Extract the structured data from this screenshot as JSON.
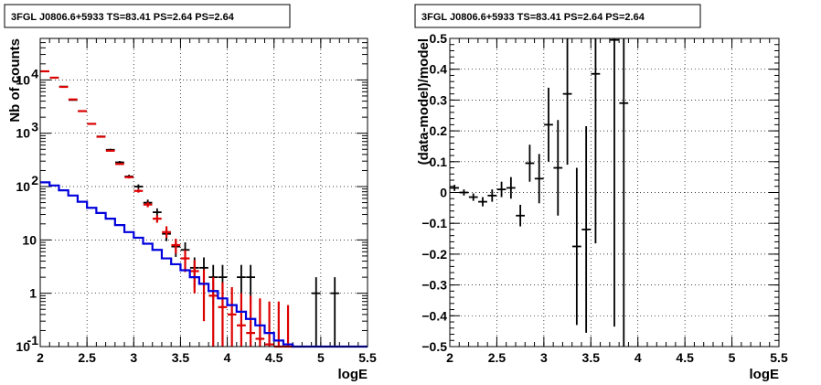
{
  "chart_data": [
    {
      "type": "scatter",
      "title": "3FGL J0806.6+5933 TS=83.41 PS=2.64 PS=2.64",
      "xlabel": "logE",
      "ylabel": "Nb of counts",
      "xlim": [
        2,
        5.5
      ],
      "ylim": [
        0.1,
        60000
      ],
      "yscale": "log",
      "grid": true,
      "x_ticks": [
        "2",
        "2.5",
        "3",
        "3.5",
        "4",
        "4.5",
        "5",
        "5.5"
      ],
      "y_ticks": [
        {
          "label": "10",
          "sup": "-1",
          "value": 0.1
        },
        {
          "label": "1",
          "sup": "",
          "value": 1
        },
        {
          "label": "10",
          "sup": "",
          "value": 10
        },
        {
          "label": "10",
          "sup": "2",
          "value": 100
        },
        {
          "label": "10",
          "sup": "3",
          "value": 1000
        },
        {
          "label": "10",
          "sup": "4",
          "value": 10000
        }
      ],
      "series": [
        {
          "kind": "data_points",
          "color": "#000000",
          "points": [
            {
              "x": 2.05,
              "y": 14500,
              "lo": 14380,
              "hi": 14620
            },
            {
              "x": 2.15,
              "y": 11000,
              "lo": 10900,
              "hi": 11100
            },
            {
              "x": 2.25,
              "y": 7500,
              "lo": 7410,
              "hi": 7590
            },
            {
              "x": 2.35,
              "y": 4200,
              "lo": 4135,
              "hi": 4265
            },
            {
              "x": 2.45,
              "y": 2600,
              "lo": 2550,
              "hi": 2650
            },
            {
              "x": 2.55,
              "y": 1500,
              "lo": 1460,
              "hi": 1540
            },
            {
              "x": 2.65,
              "y": 870,
              "lo": 840,
              "hi": 900
            },
            {
              "x": 2.75,
              "y": 490,
              "lo": 468,
              "hi": 512
            },
            {
              "x": 2.85,
              "y": 285,
              "lo": 268,
              "hi": 302
            },
            {
              "x": 2.95,
              "y": 155,
              "lo": 143,
              "hi": 167
            },
            {
              "x": 3.05,
              "y": 100,
              "lo": 90,
              "hi": 110
            },
            {
              "x": 3.15,
              "y": 50,
              "lo": 43,
              "hi": 57
            },
            {
              "x": 3.25,
              "y": 33,
              "lo": 27,
              "hi": 39
            },
            {
              "x": 3.35,
              "y": 13,
              "lo": 9.5,
              "hi": 16.5
            },
            {
              "x": 3.45,
              "y": 7.5,
              "lo": 4.8,
              "hi": 10.2
            },
            {
              "x": 3.55,
              "y": 6.5,
              "lo": 4.0,
              "hi": 9.0
            },
            {
              "x": 3.65,
              "y": 3.0,
              "lo": 1.3,
              "hi": 4.7
            },
            {
              "x": 3.75,
              "y": 3.0,
              "lo": 1.3,
              "hi": 4.7
            },
            {
              "x": 3.85,
              "y": 2.0,
              "lo": 0.6,
              "hi": 3.4
            },
            {
              "x": 3.95,
              "y": 2.0,
              "lo": 0.6,
              "hi": 3.4
            },
            {
              "x": 4.15,
              "y": 2.0,
              "lo": 0.6,
              "hi": 3.4
            },
            {
              "x": 4.25,
              "y": 2.0,
              "lo": 0.6,
              "hi": 3.4
            },
            {
              "x": 4.95,
              "y": 1.0,
              "lo": 0.1,
              "hi": 2.0
            },
            {
              "x": 5.15,
              "y": 1.0,
              "lo": 0.1,
              "hi": 2.0
            }
          ]
        },
        {
          "kind": "model_points",
          "color": "#dd0000",
          "points": [
            {
              "x": 2.05,
              "y": 14500,
              "lo": 14400,
              "hi": 14600
            },
            {
              "x": 2.15,
              "y": 11000,
              "lo": 10900,
              "hi": 11100
            },
            {
              "x": 2.25,
              "y": 7400,
              "lo": 7320,
              "hi": 7480
            },
            {
              "x": 2.35,
              "y": 4300,
              "lo": 4240,
              "hi": 4360
            },
            {
              "x": 2.45,
              "y": 2600,
              "lo": 2560,
              "hi": 2640
            },
            {
              "x": 2.55,
              "y": 1500,
              "lo": 1470,
              "hi": 1530
            },
            {
              "x": 2.65,
              "y": 860,
              "lo": 840,
              "hi": 880
            },
            {
              "x": 2.75,
              "y": 470,
              "lo": 455,
              "hi": 485
            },
            {
              "x": 2.85,
              "y": 265,
              "lo": 255,
              "hi": 275
            },
            {
              "x": 2.95,
              "y": 150,
              "lo": 142,
              "hi": 158
            },
            {
              "x": 3.05,
              "y": 83,
              "lo": 77,
              "hi": 89
            },
            {
              "x": 3.15,
              "y": 46,
              "lo": 41,
              "hi": 51
            },
            {
              "x": 3.25,
              "y": 25,
              "lo": 21,
              "hi": 29
            },
            {
              "x": 3.35,
              "y": 14,
              "lo": 11,
              "hi": 18
            },
            {
              "x": 3.45,
              "y": 8.0,
              "lo": 5.5,
              "hi": 10.5
            },
            {
              "x": 3.55,
              "y": 4.5,
              "lo": 2.5,
              "hi": 6.5
            },
            {
              "x": 3.65,
              "y": 2.6,
              "lo": 1.0,
              "hi": 4.2
            },
            {
              "x": 3.75,
              "y": 1.5,
              "lo": 0.3,
              "hi": 2.8
            },
            {
              "x": 3.85,
              "y": 0.9,
              "lo": 0.1,
              "hi": 2.0
            },
            {
              "x": 3.95,
              "y": 0.55,
              "lo": 0.1,
              "hi": 1.6
            },
            {
              "x": 4.05,
              "y": 0.4,
              "lo": 0.1,
              "hi": 1.3
            },
            {
              "x": 4.15,
              "y": 0.25,
              "lo": 0.1,
              "hi": 1.0
            },
            {
              "x": 4.25,
              "y": 0.18,
              "lo": 0.1,
              "hi": 0.9
            },
            {
              "x": 4.35,
              "y": 0.14,
              "lo": 0.1,
              "hi": 0.8
            },
            {
              "x": 4.45,
              "y": 0.11,
              "lo": 0.1,
              "hi": 0.7
            },
            {
              "x": 4.55,
              "y": 0.1,
              "lo": 0.1,
              "hi": 0.7
            },
            {
              "x": 4.65,
              "y": 0.1,
              "lo": 0.1,
              "hi": 0.6
            }
          ]
        },
        {
          "kind": "step",
          "color": "#0000dd",
          "edges": [
            2.0,
            2.1,
            2.2,
            2.3,
            2.4,
            2.5,
            2.6,
            2.7,
            2.8,
            2.9,
            3.0,
            3.1,
            3.2,
            3.3,
            3.4,
            3.5,
            3.6,
            3.7,
            3.8,
            3.9,
            4.0,
            4.1,
            4.2,
            4.3,
            4.4,
            4.5,
            4.6,
            4.7,
            5.5
          ],
          "values": [
            120,
            105,
            85,
            68,
            52,
            40,
            32,
            25,
            19,
            14,
            11,
            8.5,
            6.5,
            4.5,
            3.5,
            2.7,
            2.0,
            1.5,
            1.1,
            0.8,
            0.6,
            0.45,
            0.33,
            0.25,
            0.18,
            0.13,
            0.11,
            0.1
          ]
        }
      ]
    },
    {
      "type": "scatter",
      "title": "3FGL J0806.6+5933 TS=83.41 PS=2.64 PS=2.64",
      "xlabel": "logE",
      "ylabel": "(data-model)/model",
      "xlim": [
        2,
        5.5
      ],
      "ylim": [
        -0.5,
        0.5
      ],
      "grid": true,
      "x_ticks": [
        "2",
        "2.5",
        "3",
        "3.5",
        "4",
        "4.5",
        "5",
        "5.5"
      ],
      "y_ticks": [
        "−0.5",
        "−0.4",
        "−0.3",
        "−0.2",
        "−0.1",
        "0",
        "0.1",
        "0.2",
        "0.3",
        "0.4",
        "0.5"
      ],
      "series": [
        {
          "kind": "data_points",
          "color": "#000000",
          "points": [
            {
              "x": 2.05,
              "y": 0.015,
              "lo": 0.005,
              "hi": 0.025
            },
            {
              "x": 2.15,
              "y": 0.0,
              "lo": -0.01,
              "hi": 0.01
            },
            {
              "x": 2.25,
              "y": -0.015,
              "lo": -0.027,
              "hi": -0.003
            },
            {
              "x": 2.35,
              "y": -0.03,
              "lo": -0.045,
              "hi": -0.015
            },
            {
              "x": 2.45,
              "y": -0.01,
              "lo": -0.03,
              "hi": 0.01
            },
            {
              "x": 2.55,
              "y": 0.01,
              "lo": -0.015,
              "hi": 0.035
            },
            {
              "x": 2.65,
              "y": 0.015,
              "lo": -0.02,
              "hi": 0.05
            },
            {
              "x": 2.75,
              "y": -0.075,
              "lo": -0.11,
              "hi": -0.04
            },
            {
              "x": 2.85,
              "y": 0.095,
              "lo": 0.035,
              "hi": 0.155
            },
            {
              "x": 2.95,
              "y": 0.045,
              "lo": -0.035,
              "hi": 0.125
            },
            {
              "x": 3.05,
              "y": 0.22,
              "lo": 0.1,
              "hi": 0.34
            },
            {
              "x": 3.15,
              "y": 0.08,
              "lo": -0.075,
              "hi": 0.235
            },
            {
              "x": 3.25,
              "y": 0.32,
              "lo": 0.09,
              "hi": 0.55
            },
            {
              "x": 3.35,
              "y": -0.175,
              "lo": -0.43,
              "hi": 0.08
            },
            {
              "x": 3.45,
              "y": -0.12,
              "lo": -0.455,
              "hi": 0.215
            },
            {
              "x": 3.55,
              "y": 0.385,
              "lo": -0.165,
              "hi": 0.55
            },
            {
              "x": 3.75,
              "y": 0.495,
              "lo": -0.435,
              "hi": 0.55
            },
            {
              "x": 3.85,
              "y": 0.29,
              "lo": -0.55,
              "hi": 0.55
            }
          ]
        }
      ]
    }
  ]
}
